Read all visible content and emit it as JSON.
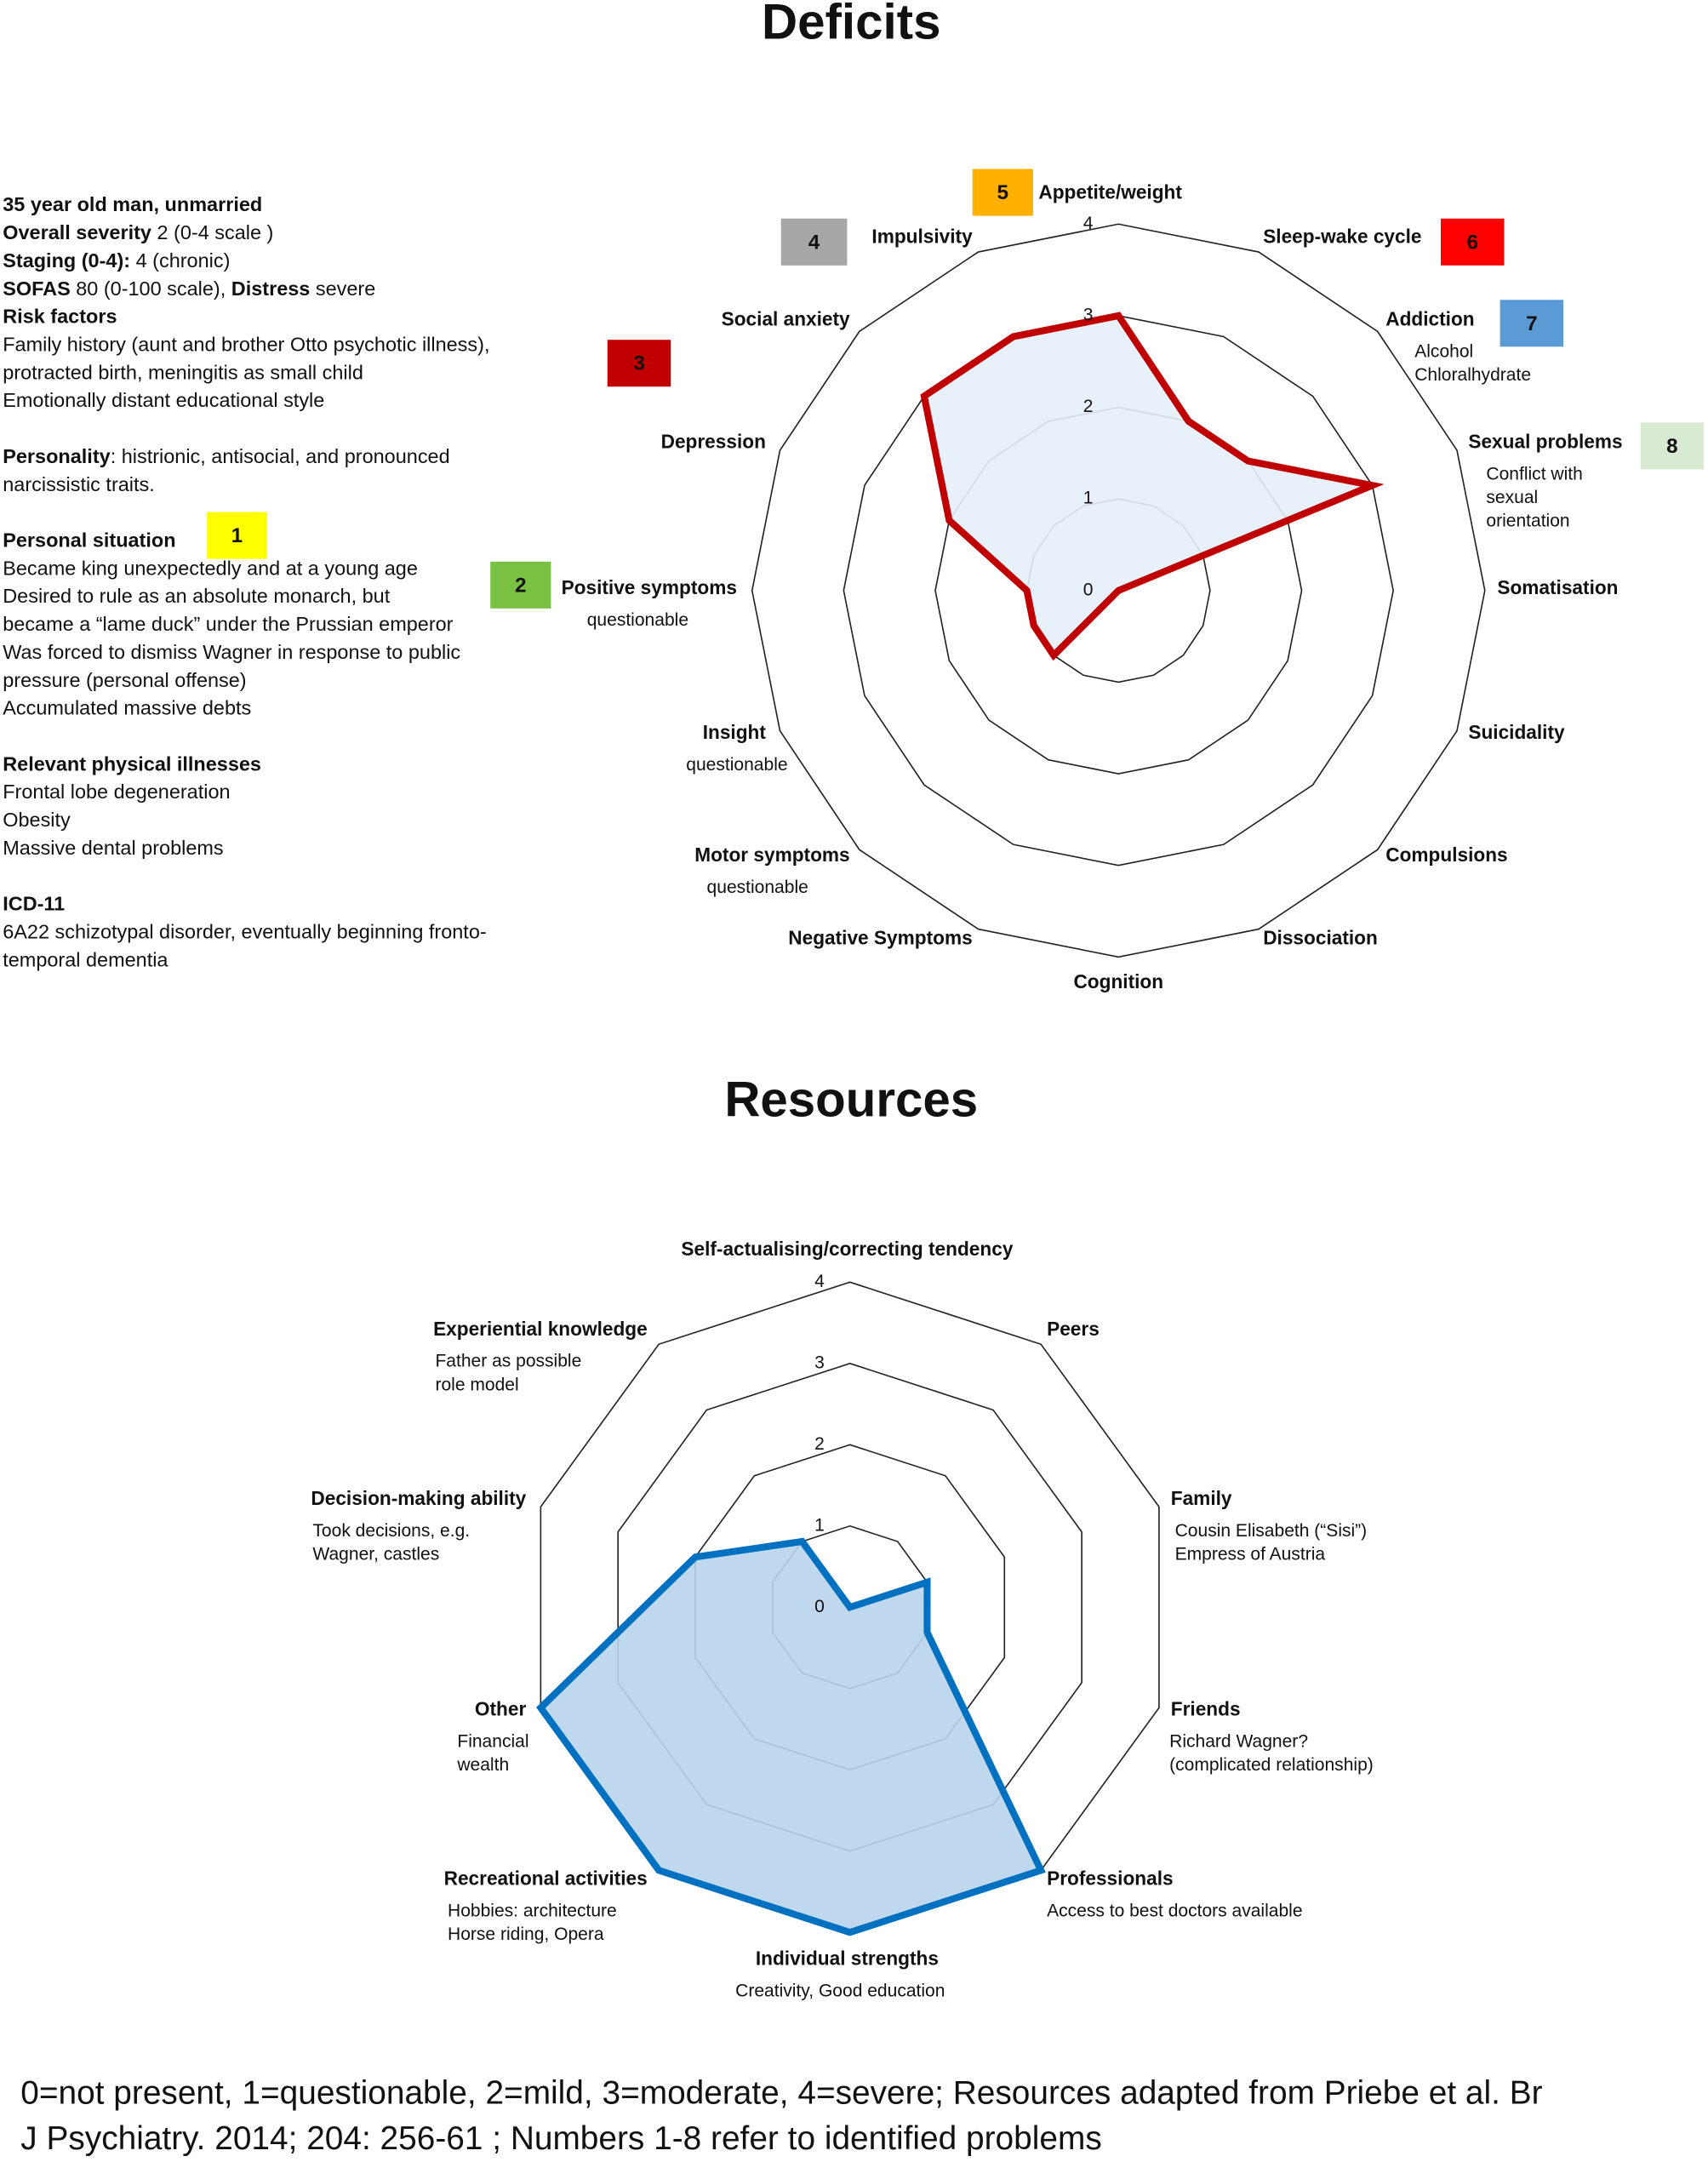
{
  "chart_data": [
    {
      "type": "radar",
      "title": "Deficits",
      "categories": [
        "Appetite/weight",
        "Sleep-wake cycle",
        "Addiction",
        "Sexual problems",
        "Somatisation",
        "Suicidality",
        "Compulsions",
        "Dissociation",
        "Cognition",
        "Negative Symptoms",
        "Motor symptoms",
        "Insight",
        "Positive symptoms",
        "Depression",
        "Social anxiety",
        "Impulsivity"
      ],
      "notes": [
        null,
        null,
        [
          "Alcohol",
          "Chloralhydrate"
        ],
        [
          "Conflict with",
          "sexual",
          "orientation"
        ],
        null,
        null,
        null,
        null,
        null,
        null,
        [
          "questionable"
        ],
        [
          "questionable"
        ],
        [
          "questionable"
        ],
        null,
        null,
        null
      ],
      "values": [
        3,
        2,
        2,
        3,
        0,
        0,
        0,
        0,
        0,
        0,
        1,
        1,
        1,
        2,
        3,
        3
      ],
      "color": "#c00000",
      "fill": "#e6eef9",
      "rlim": [
        0,
        4
      ],
      "rticks": [
        0,
        1,
        2,
        3,
        4
      ]
    },
    {
      "type": "radar",
      "title": "Resources",
      "categories": [
        "Self-actualising/correcting tendency",
        "Peers",
        "Family",
        "Friends",
        "Professionals",
        "Individual strengths",
        "Recreational activities",
        "Other",
        "Decision-making ability",
        "Experiential knowledge"
      ],
      "notes": [
        null,
        null,
        [
          "Cousin Elisabeth (“Sisi”)",
          "Empress of Austria"
        ],
        [
          "Richard Wagner?",
          "(complicated relationship)"
        ],
        [
          "Access to best doctors available"
        ],
        [
          "Creativity, Good education"
        ],
        [
          "Hobbies: architecture",
          "Horse riding, Opera"
        ],
        [
          "Financial",
          "wealth"
        ],
        [
          "Took decisions, e.g.",
          "Wagner, castles"
        ],
        [
          "Father as possible",
          "role model"
        ]
      ],
      "values": [
        0,
        0,
        1,
        1,
        4,
        4,
        4,
        4,
        2,
        1
      ],
      "color": "#0070c0",
      "fill": "#b8d4ec",
      "rlim": [
        0,
        4
      ],
      "rticks": [
        0,
        1,
        2,
        3,
        4
      ]
    }
  ],
  "problems": [
    {
      "label": "1",
      "color": "#ffff00"
    },
    {
      "label": "2",
      "color": "#7ac143"
    },
    {
      "label": "3",
      "color": "#c00000"
    },
    {
      "label": "4",
      "color": "#a6a6a6"
    },
    {
      "label": "5",
      "color": "#ffb000"
    },
    {
      "label": "6",
      "color": "#ff0000"
    },
    {
      "label": "7",
      "color": "#5b9bd5"
    },
    {
      "label": "8",
      "color": "#d9ead3"
    }
  ],
  "case": [
    [
      [
        {
          "text": "35 year old man, unmarried",
          "bold": true
        }
      ],
      [
        {
          "text": "Overall severity",
          "bold": true
        },
        {
          "text": " 2 (0-4 scale )"
        }
      ],
      [
        {
          "text": "Staging (0-4):",
          "bold": true
        },
        {
          "text": " 4 (chronic)"
        }
      ],
      [
        {
          "text": "SOFAS",
          "bold": true
        },
        {
          "text": " 80 (0-100 scale), "
        },
        {
          "text": "Distress",
          "bold": true
        },
        {
          "text": " severe"
        }
      ],
      [
        {
          "text": "Risk factors",
          "bold": true
        }
      ],
      [
        {
          "text": "Family history (aunt and brother Otto psychotic illness),"
        }
      ],
      [
        {
          "text": "protracted birth, meningitis as small child"
        }
      ],
      [
        {
          "text": "Emotionally distant educational style"
        }
      ]
    ],
    [
      [
        {
          "text": "Personality",
          "bold": true
        },
        {
          "text": ": histrionic, antisocial, and pronounced"
        }
      ],
      [
        {
          "text": "narcissistic traits."
        }
      ]
    ],
    [
      [
        {
          "text": "Personal situation",
          "bold": true
        }
      ],
      [
        {
          "text": "Became king unexpectedly and at a young age"
        }
      ],
      [
        {
          "text": "Desired to rule as an absolute monarch, but"
        }
      ],
      [
        {
          "text": "became a “lame duck” under the Prussian emperor"
        }
      ],
      [
        {
          "text": "Was forced to dismiss Wagner in response to public"
        }
      ],
      [
        {
          "text": "pressure (personal offense)"
        }
      ],
      [
        {
          "text": "Accumulated massive debts"
        }
      ]
    ],
    [
      [
        {
          "text": "Relevant physical illnesses",
          "bold": true
        }
      ],
      [
        {
          "text": "Frontal lobe degeneration"
        }
      ],
      [
        {
          "text": "Obesity"
        }
      ],
      [
        {
          "text": "Massive dental problems"
        }
      ]
    ],
    [
      [
        {
          "text": "ICD-11",
          "bold": true
        }
      ],
      [
        {
          "text": "6A22 schizotypal disorder, eventually beginning fronto-"
        }
      ],
      [
        {
          "text": "temporal dementia"
        }
      ]
    ]
  ],
  "footer": [
    "0=not present, 1=questionable, 2=mild, 3=moderate, 4=severe; Resources adapted from Priebe et al. Br",
    "J Psychiatry. 2014; 204: 256-61 ; Numbers 1-8 refer to identified problems"
  ]
}
